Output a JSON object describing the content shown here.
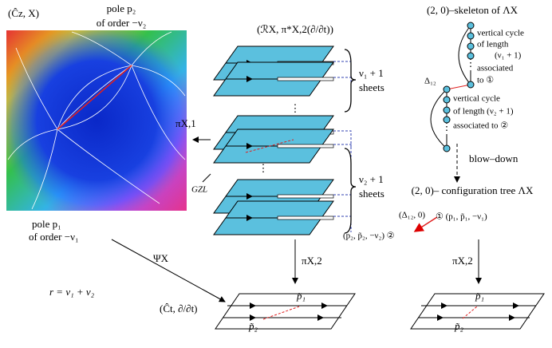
{
  "labels": {
    "domain_title": "(Ĉz, X)",
    "pole_p2": "pole p₂",
    "pole_p2_order": "of order −ν₂",
    "pole_p1": "pole p₁",
    "pole_p1_order": "of order −ν₁",
    "riemann_surface": "(ℛX, π*X,2(∂/∂t))",
    "pi_x1": "πX,1",
    "gzl": "GZL",
    "psi_x": "ΨX",
    "r_eq": "r = ν₁ + ν₂",
    "sheets_1_count": "ν₁ + 1",
    "sheets_1": "sheets",
    "sheets_2_count": "ν₂ + 1",
    "sheets_2": "sheets",
    "pi_x2_left": "πX,2",
    "pi_x2_right": "πX,2",
    "target_plane": "(Ĉt, ∂/∂t)",
    "p1_tilde_left": "p̃₁",
    "p2_tilde_left": "p̃₂",
    "p1_tilde_right": "p̃₁",
    "p2_tilde_right": "p̃₂",
    "skeleton_title": "(2, 0)–skeleton of ΛX",
    "cycle1": [
      "vertical cycle",
      "of length",
      "(ν₁ + 1)",
      "associated",
      "to ①"
    ],
    "delta12": "Δ₁₂",
    "cycle2": [
      "vertical cycle",
      "of length (ν₂ + 1)",
      "associated to ②"
    ],
    "blow_down": "blow–down",
    "tree_title": "(2, 0)– configuration tree ΛX",
    "tree_edge": "(Δ₁₂, 0)",
    "node1": "① (p₁, p̃₁, −ν₁)",
    "node2": "(p₂, p̃₂, −ν₂) ②"
  }
}
